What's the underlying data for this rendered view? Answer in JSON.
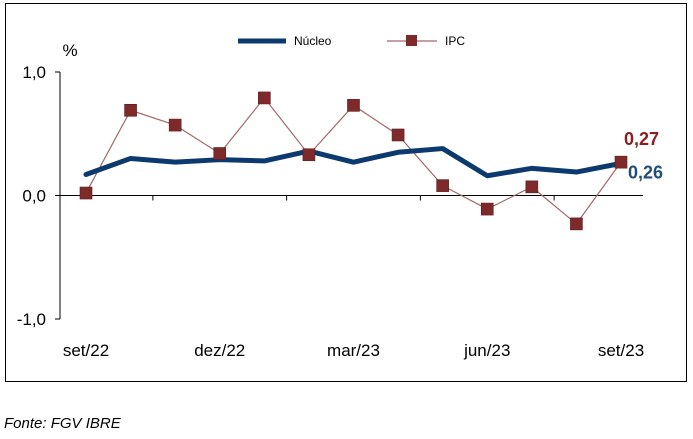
{
  "chart_data": {
    "type": "line",
    "unit_label": "%",
    "x": [
      "set/22",
      "out/22",
      "nov/22",
      "dez/22",
      "jan/23",
      "fev/23",
      "mar/23",
      "abr/23",
      "mai/23",
      "jun/23",
      "jul/23",
      "ago/23",
      "set/23"
    ],
    "x_tick_labels": [
      "set/22",
      "dez/22",
      "mar/23",
      "jun/23",
      "set/23"
    ],
    "y_tick_labels": [
      "1,0",
      "0,0",
      "-1,0"
    ],
    "ylim": [
      -1.0,
      1.0
    ],
    "series": [
      {
        "name": "Núcleo",
        "color": "#0d3a6e",
        "values": [
          0.17,
          0.3,
          0.27,
          0.29,
          0.28,
          0.36,
          0.27,
          0.35,
          0.38,
          0.16,
          0.22,
          0.19,
          0.26
        ]
      },
      {
        "name": "IPC",
        "color": "#7f2a2a",
        "values": [
          0.02,
          0.69,
          0.57,
          0.34,
          0.79,
          0.33,
          0.73,
          0.49,
          0.08,
          -0.11,
          0.07,
          -0.23,
          0.27
        ]
      }
    ],
    "end_labels": {
      "IPC": "0,27",
      "Núcleo": "0,26"
    },
    "legend_position": "top",
    "grid": false
  },
  "source_text": "Fonte: FGV IBRE"
}
